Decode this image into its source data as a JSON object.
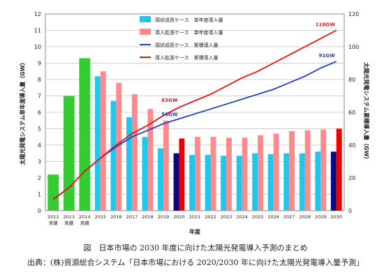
{
  "chart_data": {
    "type": "bar",
    "title": "",
    "xlabel": "年度",
    "ylabel_left": "太陽光発電システム単年度導入量（GW）",
    "ylabel_right": "太陽光発電システム累積導入量（GW）",
    "ylim_left": [
      0,
      12
    ],
    "ylim_right": [
      0,
      120
    ],
    "yticks_left": [
      "0",
      "1",
      "2",
      "3",
      "4",
      "5",
      "6",
      "7",
      "8",
      "9",
      "10",
      "11",
      "12"
    ],
    "yticks_right": [
      "0",
      "20",
      "40",
      "60",
      "80",
      "100",
      "120"
    ],
    "categories": [
      {
        "label": "2012",
        "sub": "実績"
      },
      {
        "label": "2013",
        "sub": "実績"
      },
      {
        "label": "2014",
        "sub": "実績"
      },
      {
        "label": "2015",
        "sub": ""
      },
      {
        "label": "2016",
        "sub": ""
      },
      {
        "label": "2017",
        "sub": ""
      },
      {
        "label": "2018",
        "sub": ""
      },
      {
        "label": "2019",
        "sub": ""
      },
      {
        "label": "2020",
        "sub": ""
      },
      {
        "label": "2021",
        "sub": ""
      },
      {
        "label": "2022",
        "sub": ""
      },
      {
        "label": "2023",
        "sub": ""
      },
      {
        "label": "2024",
        "sub": ""
      },
      {
        "label": "2025",
        "sub": ""
      },
      {
        "label": "2026",
        "sub": ""
      },
      {
        "label": "2027",
        "sub": ""
      },
      {
        "label": "2028",
        "sub": ""
      },
      {
        "label": "2029",
        "sub": ""
      },
      {
        "label": "2030",
        "sub": ""
      }
    ],
    "actual": {
      "color": "#33cc33",
      "values": [
        2.2,
        7.0,
        9.3
      ]
    },
    "series": [
      {
        "name": "現状成長ケース　単年度導入量",
        "kind": "bar",
        "color": "#1ec8ec",
        "highlight_color": "#0a0a80",
        "values": [
          null,
          null,
          null,
          8.2,
          6.7,
          5.7,
          4.5,
          3.8,
          3.5,
          3.4,
          3.4,
          3.35,
          3.35,
          3.5,
          3.45,
          3.5,
          3.5,
          3.6,
          3.6
        ]
      },
      {
        "name": "導入拡張ケース　単年度導入量",
        "kind": "bar",
        "color": "#ff8a8e",
        "highlight_color": "#ee0000",
        "values": [
          null,
          null,
          null,
          8.5,
          7.8,
          7.1,
          6.2,
          5.5,
          4.4,
          4.5,
          4.5,
          4.45,
          4.45,
          4.6,
          4.7,
          4.85,
          4.9,
          4.95,
          5.0
        ]
      },
      {
        "name": "現状成長ケース　累積導入量",
        "kind": "line",
        "axis": "right",
        "color": "#1e3cc8",
        "values": [
          7,
          14,
          24,
          32,
          39,
          45,
          49,
          53,
          56,
          59,
          62,
          65,
          68,
          71,
          74,
          78,
          82,
          87,
          91
        ]
      },
      {
        "name": "導入拡張ケース　累積導入量",
        "kind": "line",
        "axis": "right",
        "color": "#ee1111",
        "values": [
          7,
          14,
          24,
          32,
          40,
          47,
          52,
          58,
          63,
          67,
          71,
          76,
          81,
          85,
          90,
          95,
          100,
          105,
          110
        ]
      }
    ],
    "highlight_categories": [
      "2020",
      "2030"
    ],
    "annotations": [
      {
        "text": "56GW",
        "series": 2,
        "index": 8
      },
      {
        "text": "63GW",
        "series": 3,
        "index": 8
      },
      {
        "text": "91GW",
        "series": 2,
        "index": 18
      },
      {
        "text": "110GW",
        "series": 3,
        "index": 18
      }
    ],
    "grid": true,
    "legend_position": "top-center"
  },
  "caption": {
    "line1": "図　日本市場の 2030 年度に向けた太陽光発電導入予測のまとめ",
    "line2": "出典：(株)資源総合システム「日本市場における 2020/2030 年に向けた太陽光発電導入量予測」"
  }
}
